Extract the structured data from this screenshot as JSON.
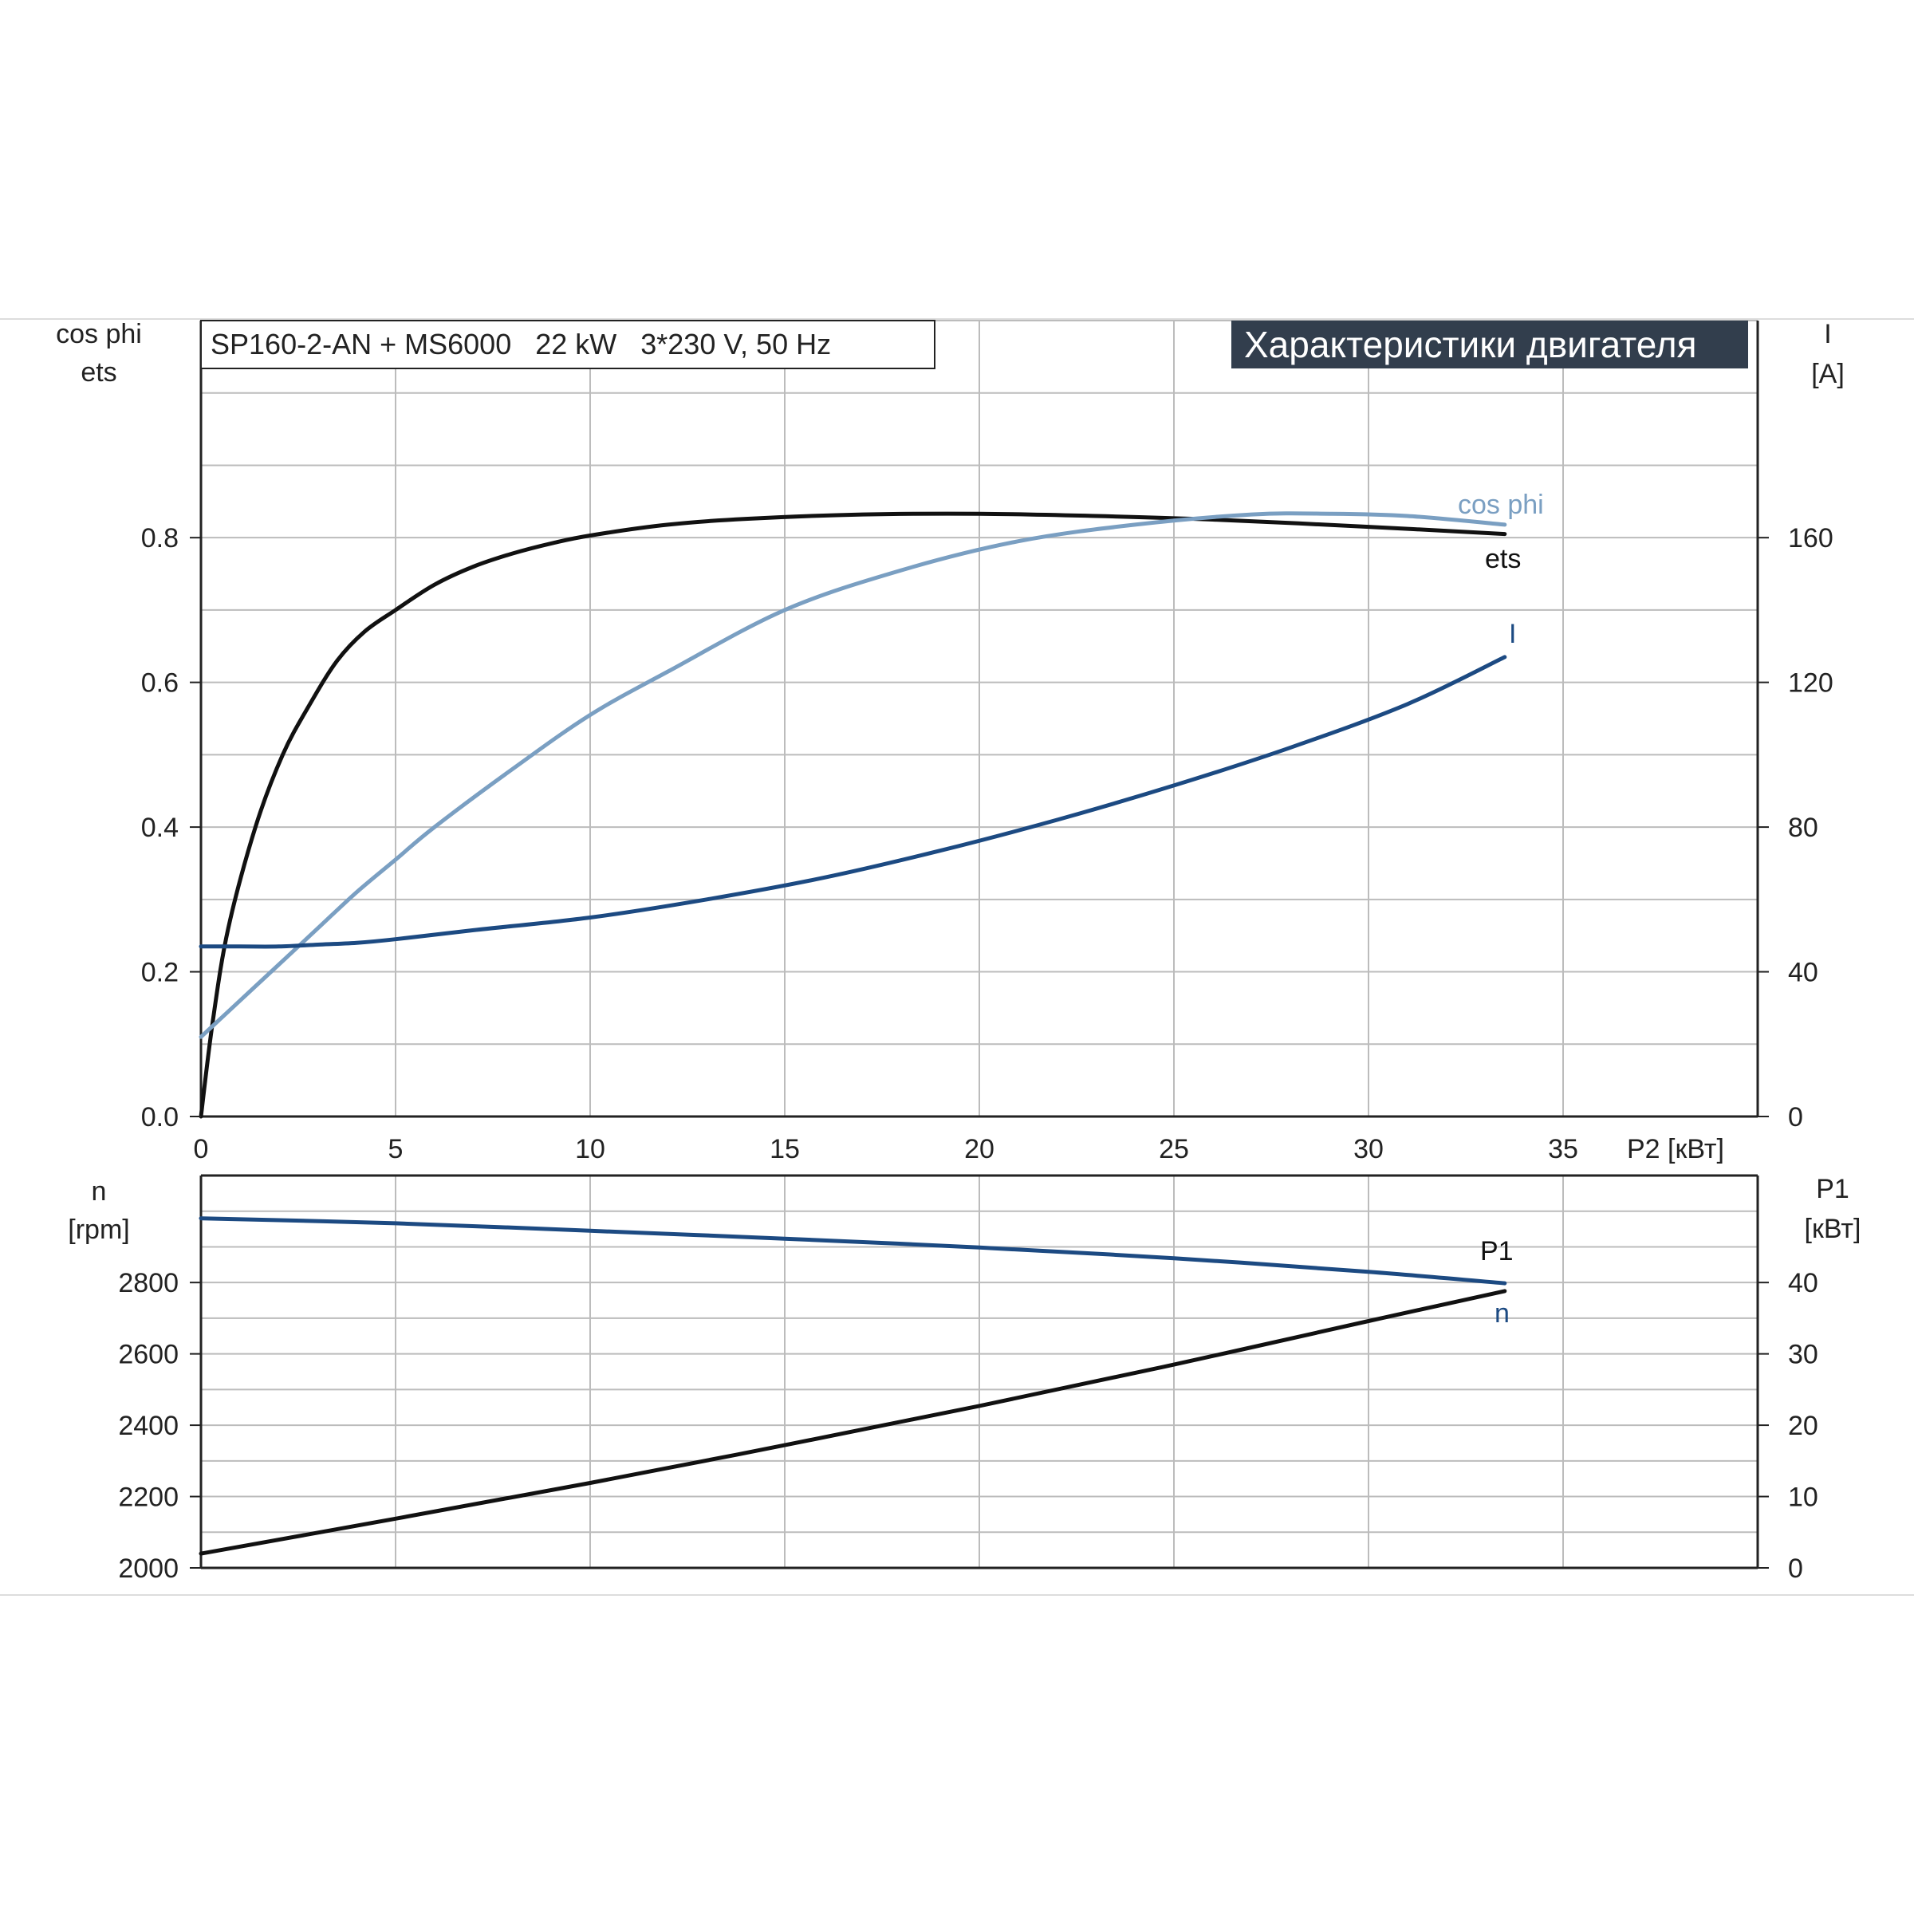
{
  "header": {
    "spec": "SP160-2-AN + MS6000   22 kW   3*230 V, 50 Hz",
    "badge": "Характеристики двигателя"
  },
  "upper_axes": {
    "left_label_1": "cos phi",
    "left_label_2": "ets",
    "right_label_1": "I",
    "right_label_2": "[A]",
    "x_label": "P2 [кВт]"
  },
  "lower_axes": {
    "left_label_1": "n",
    "left_label_2": "[rpm]",
    "right_label_1": "P1",
    "right_label_2": "[кВт]"
  },
  "colors": {
    "ets": "#111111",
    "cos_phi": "#7a9fc2",
    "I": "#1c4a82",
    "n": "#1c4a82",
    "P1": "#111111",
    "grid": "#bcbcbc",
    "axis": "#222222",
    "badge_bg": "#323e4d"
  },
  "chart_data": [
    {
      "type": "line",
      "x": {
        "label": "P2 [кВт]",
        "lim": [
          0,
          40
        ],
        "ticks": [
          0,
          5,
          10,
          15,
          20,
          25,
          30,
          35
        ]
      },
      "y_left": {
        "label": "cos phi / ets",
        "lim": [
          0,
          1.1
        ],
        "ticks": [
          0.0,
          0.2,
          0.4,
          0.6,
          0.8
        ]
      },
      "y_right": {
        "label": "I [A]",
        "lim": [
          0,
          220
        ],
        "ticks": [
          0,
          40,
          80,
          120,
          160
        ]
      },
      "grid": true,
      "series": [
        {
          "name": "ets",
          "axis": "left",
          "x": [
            0,
            0.3,
            0.7,
            1.4,
            2.1,
            2.8,
            3.5,
            4.2,
            5,
            6,
            7,
            8,
            9,
            10,
            12,
            14,
            17,
            20,
            23,
            26,
            30,
            33.5
          ],
          "y": [
            0.0,
            0.13,
            0.26,
            0.4,
            0.5,
            0.57,
            0.63,
            0.67,
            0.7,
            0.735,
            0.76,
            0.778,
            0.792,
            0.803,
            0.818,
            0.826,
            0.832,
            0.833,
            0.83,
            0.825,
            0.815,
            0.805
          ]
        },
        {
          "name": "cos phi",
          "axis": "left",
          "x": [
            0,
            1,
            2,
            3,
            4,
            5,
            6,
            8,
            10,
            12,
            15,
            18,
            21,
            24,
            27,
            29,
            31,
            33.5
          ],
          "y": [
            0.11,
            0.16,
            0.21,
            0.26,
            0.31,
            0.355,
            0.4,
            0.48,
            0.555,
            0.615,
            0.7,
            0.755,
            0.795,
            0.818,
            0.832,
            0.833,
            0.83,
            0.818
          ]
        },
        {
          "name": "I",
          "axis": "right",
          "x": [
            0,
            1,
            2,
            3,
            4,
            5,
            7,
            10,
            13,
            16,
            19,
            22,
            25,
            28,
            31,
            33.5
          ],
          "y": [
            47,
            47,
            47,
            47.5,
            48,
            49,
            51.5,
            55,
            60,
            66,
            73.5,
            82,
            91.5,
            102,
            114,
            127
          ]
        }
      ]
    },
    {
      "type": "line",
      "x": {
        "lim": [
          0,
          40
        ],
        "ticks": [
          0,
          5,
          10,
          15,
          20,
          25,
          30,
          35
        ]
      },
      "y_left": {
        "label": "n [rpm]",
        "lim": [
          2000,
          3100
        ],
        "ticks": [
          2000,
          2200,
          2400,
          2600,
          2800
        ]
      },
      "y_right": {
        "label": "P1 [кВт]",
        "lim": [
          0,
          55
        ],
        "ticks": [
          0,
          10,
          20,
          30,
          40
        ]
      },
      "grid": true,
      "series": [
        {
          "name": "n",
          "axis": "left",
          "x": [
            0,
            5,
            10,
            15,
            20,
            25,
            30,
            33.5
          ],
          "y": [
            2980,
            2966,
            2945,
            2923,
            2898,
            2868,
            2830,
            2798
          ]
        },
        {
          "name": "P1",
          "axis": "right",
          "x": [
            0,
            5,
            10,
            15,
            20,
            25,
            30,
            33.5
          ],
          "y": [
            2,
            6.9,
            11.9,
            17.2,
            22.7,
            28.5,
            34.6,
            38.8
          ]
        }
      ]
    }
  ]
}
